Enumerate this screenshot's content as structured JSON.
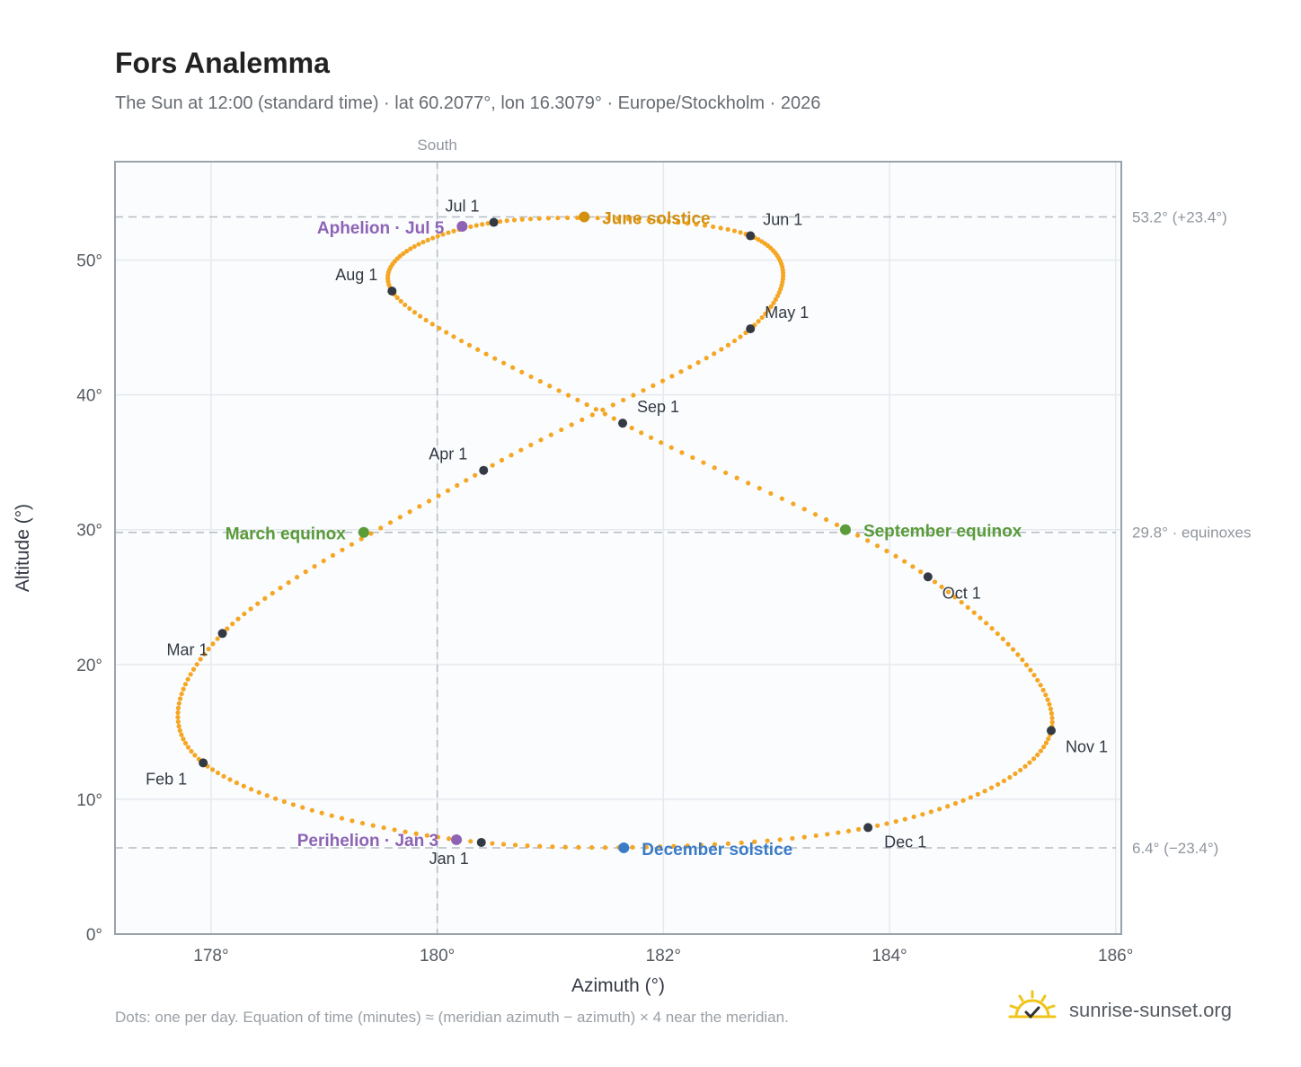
{
  "title": "Fors Analemma",
  "subtitle": "The Sun at 12:00 (standard time) · lat 60.2077°, lon 16.3079° · Europe/Stockholm · 2026",
  "footnote": "Dots: one per day. Equation of time (minutes) ≈ (meridian azimuth − azimuth) × 4 near the meridian.",
  "brand": {
    "name": "sunrise-sunset.org",
    "icon": "sun-icon",
    "color": "#f0c419"
  },
  "chart_data": {
    "type": "scatter",
    "title": "Fors Analemma",
    "xlabel": "Azimuth (°)",
    "ylabel": "Altitude (°)",
    "xlim": [
      177.15,
      186.05
    ],
    "ylim": [
      0,
      57.3
    ],
    "x_ticks": [
      178,
      180,
      182,
      184,
      186
    ],
    "y_ticks": [
      0,
      10,
      20,
      30,
      40,
      50
    ],
    "x_tick_labels": [
      "178°",
      "180°",
      "182°",
      "184°",
      "186°"
    ],
    "y_tick_labels": [
      "0°",
      "10°",
      "20°",
      "30°",
      "40°",
      "50°"
    ],
    "grid": true,
    "dot_color": "#f5a623",
    "meridian": {
      "x": 180,
      "label": "South"
    },
    "reference_lines": [
      {
        "y": 53.2,
        "label": "53.2° (+23.4°)"
      },
      {
        "y": 29.8,
        "label": "29.8° · equinoxes"
      },
      {
        "y": 6.4,
        "label": "6.4° (−23.4°)"
      }
    ],
    "monthly_points": [
      {
        "label": "Jan 1",
        "x": 180.39,
        "y": 6.8
      },
      {
        "label": "Feb 1",
        "x": 177.93,
        "y": 12.7
      },
      {
        "label": "Mar 1",
        "x": 178.1,
        "y": 22.3
      },
      {
        "label": "Apr 1",
        "x": 180.41,
        "y": 34.4
      },
      {
        "label": "May 1",
        "x": 182.77,
        "y": 44.9
      },
      {
        "label": "Jun 1",
        "x": 182.77,
        "y": 51.8
      },
      {
        "label": "Jul 1",
        "x": 180.5,
        "y": 52.8
      },
      {
        "label": "Aug 1",
        "x": 179.6,
        "y": 47.7
      },
      {
        "label": "Sep 1",
        "x": 181.64,
        "y": 37.9
      },
      {
        "label": "Oct 1",
        "x": 184.34,
        "y": 26.5
      },
      {
        "label": "Nov 1",
        "x": 185.43,
        "y": 15.1
      },
      {
        "label": "Dec 1",
        "x": 183.81,
        "y": 7.9
      }
    ],
    "events": [
      {
        "label": "Perihelion · Jan 3",
        "x": 180.17,
        "y": 7.0,
        "color": "#8e63b5"
      },
      {
        "label": "March equinox",
        "x": 179.35,
        "y": 29.8,
        "color": "#5a9b3a"
      },
      {
        "label": "June solstice",
        "x": 181.3,
        "y": 53.2,
        "color": "#d4900f"
      },
      {
        "label": "Aphelion · Jul 5",
        "x": 180.22,
        "y": 52.5,
        "color": "#8e63b5"
      },
      {
        "label": "September equinox",
        "x": 183.61,
        "y": 30.0,
        "color": "#5a9b3a"
      },
      {
        "label": "December solstice",
        "x": 181.65,
        "y": 6.4,
        "color": "#3a7bc8"
      }
    ]
  }
}
